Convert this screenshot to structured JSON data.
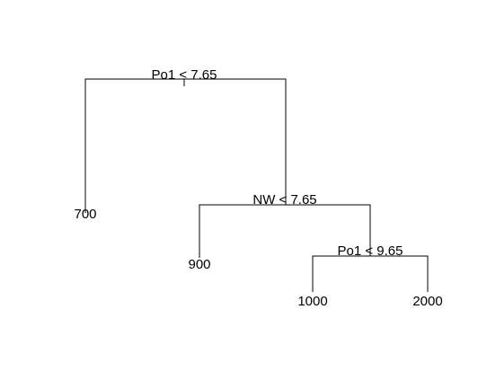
{
  "tree": {
    "colors": {
      "background": "#ffffff",
      "lines": "#000000",
      "text": "#000000"
    },
    "splits": [
      {
        "id": "root",
        "label": "Po1 < 7.65"
      },
      {
        "id": "nw",
        "label": "NW < 7.65"
      },
      {
        "id": "po1b",
        "label": "Po1 < 9.65"
      }
    ],
    "leaves": [
      {
        "id": "leaf-700",
        "label": "700"
      },
      {
        "id": "leaf-900",
        "label": "900"
      },
      {
        "id": "leaf-1000",
        "label": "1000"
      },
      {
        "id": "leaf-2000",
        "label": "2000"
      }
    ]
  }
}
